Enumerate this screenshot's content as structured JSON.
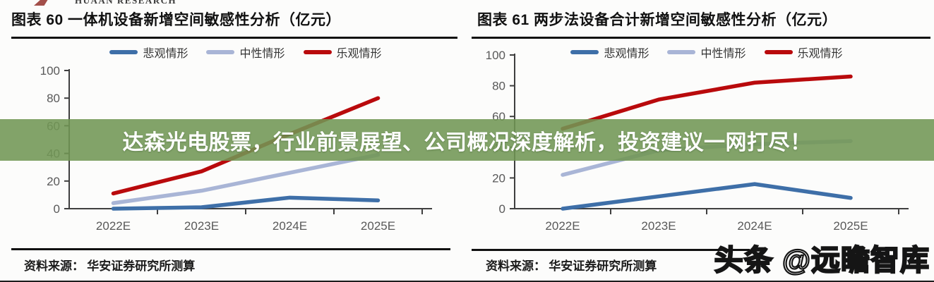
{
  "header": {
    "logo_text": "HUAAN RESEARCH"
  },
  "banner": {
    "text": "达森光电股票，行业前景展望、公司概况深度解析，投资建议一网打尽！",
    "bg_color": "#719654",
    "text_color": "#FFFFFF"
  },
  "watermark": {
    "text": "头条 @远瞻智库"
  },
  "chart_data": [
    {
      "type": "line",
      "title": "图表 60  一体机设备新增空间敏感性分析（亿元）",
      "categories": [
        "2022E",
        "2023E",
        "2024E",
        "2025E"
      ],
      "series": [
        {
          "name": "悲观情形",
          "color": "#3E6FA8",
          "values": [
            0,
            1,
            8,
            6
          ]
        },
        {
          "name": "中性情形",
          "color": "#A9B5D6",
          "values": [
            4,
            13,
            26,
            39
          ]
        },
        {
          "name": "乐观情形",
          "color": "#B90A0C",
          "values": [
            11,
            27,
            54,
            80
          ]
        }
      ],
      "ylim": [
        0,
        100
      ],
      "yticks": [
        0,
        20,
        40,
        60,
        80,
        100
      ],
      "grid": false,
      "legend_position": "top",
      "source": "资料来源： 华安证券研究所测算"
    },
    {
      "type": "line",
      "title": "图表 61 两步法设备合计新增空间敏感性分析（亿元）",
      "categories": [
        "2022E",
        "2023E",
        "2024E",
        "2025E"
      ],
      "series": [
        {
          "name": "悲观情形",
          "color": "#3E6FA8",
          "values": [
            0,
            8,
            16,
            7
          ]
        },
        {
          "name": "中性情形",
          "color": "#A9B5D6",
          "values": [
            22,
            38,
            42,
            44
          ]
        },
        {
          "name": "乐观情形",
          "color": "#B90A0C",
          "values": [
            52,
            71,
            82,
            86
          ]
        }
      ],
      "ylim": [
        0,
        100
      ],
      "yticks": [
        0,
        20,
        40,
        60,
        80,
        100
      ],
      "grid": false,
      "legend_position": "top",
      "source": "资料来源： 华安证券研究所测算"
    }
  ]
}
